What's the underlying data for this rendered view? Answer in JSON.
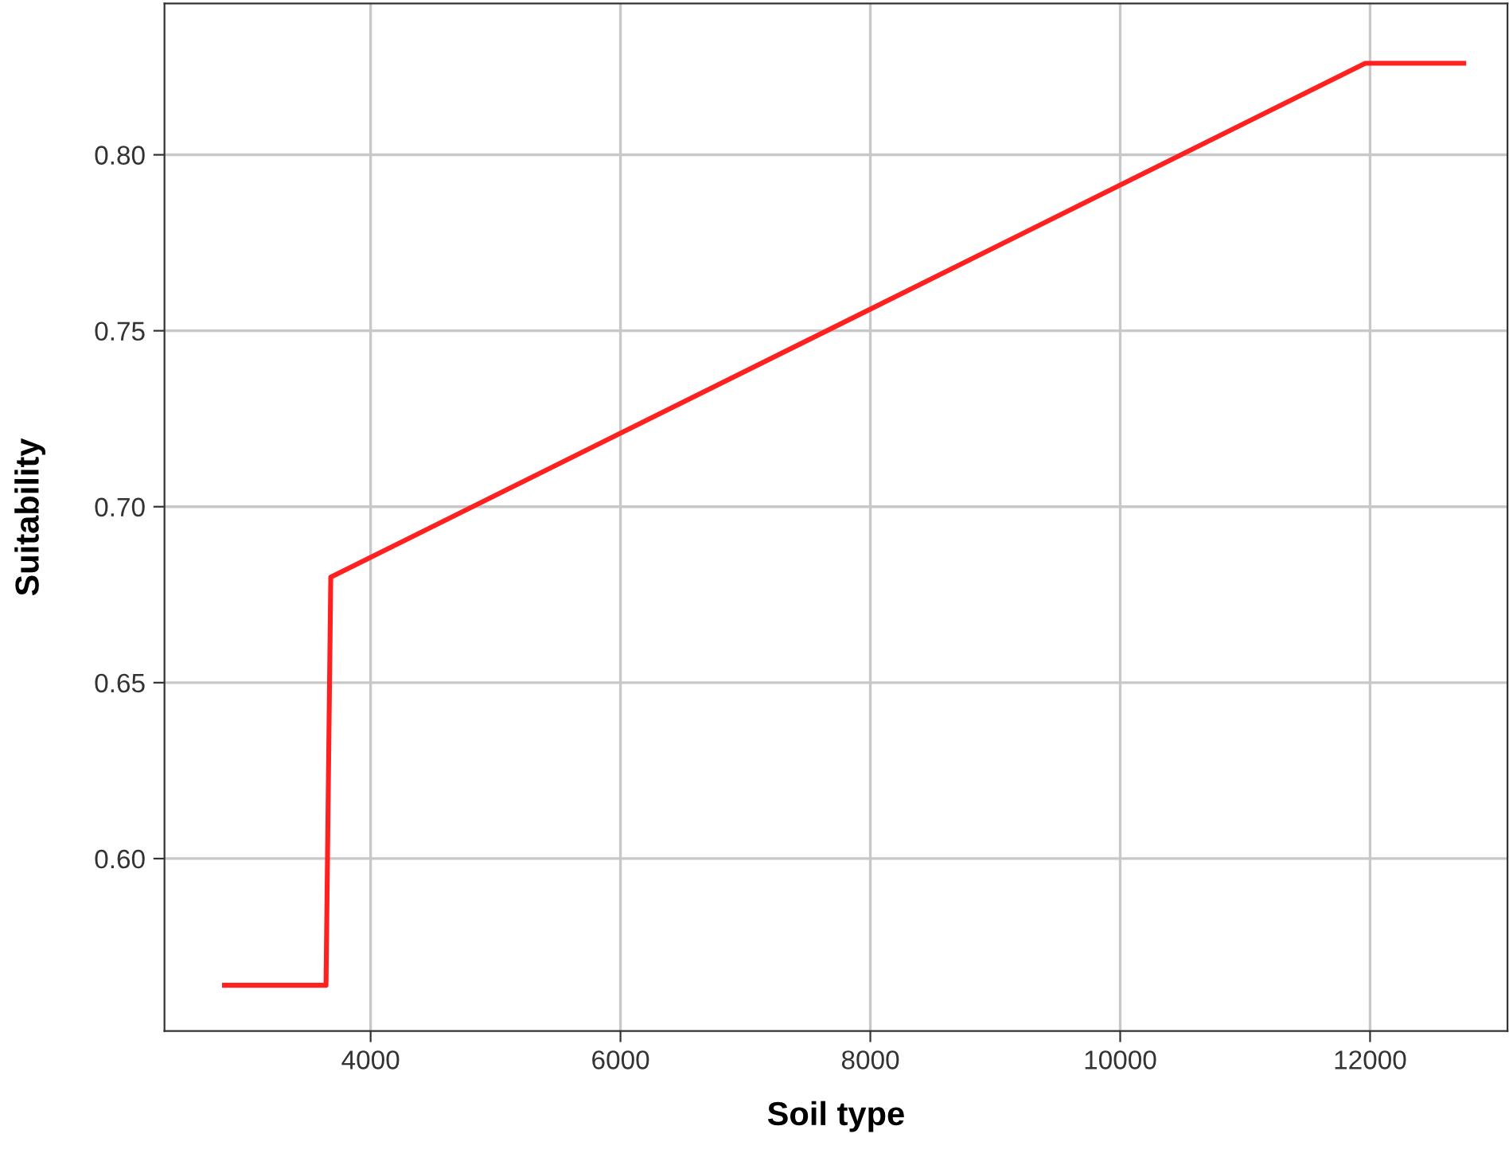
{
  "chart_data": {
    "type": "line",
    "xlabel": "Soil type",
    "ylabel": "Suitability",
    "x": [
      2830,
      3643,
      3681,
      11962,
      12750
    ],
    "series": [
      {
        "color": "#ff2020",
        "values": [
          0.564,
          0.564,
          0.68,
          0.826,
          0.826
        ]
      }
    ],
    "xlim": [
      2350,
      13100
    ],
    "ylim": [
      0.551,
      0.843
    ],
    "xticks": [
      4000,
      6000,
      8000,
      10000,
      12000
    ],
    "yticks": [
      {
        "value": 0.6,
        "label": "0.60"
      },
      {
        "value": 0.65,
        "label": "0.65"
      },
      {
        "value": 0.7,
        "label": "0.70"
      },
      {
        "value": 0.75,
        "label": "0.75"
      },
      {
        "value": 0.8,
        "label": "0.80"
      }
    ],
    "grid": true,
    "marker": "none",
    "line_style": "solid"
  }
}
